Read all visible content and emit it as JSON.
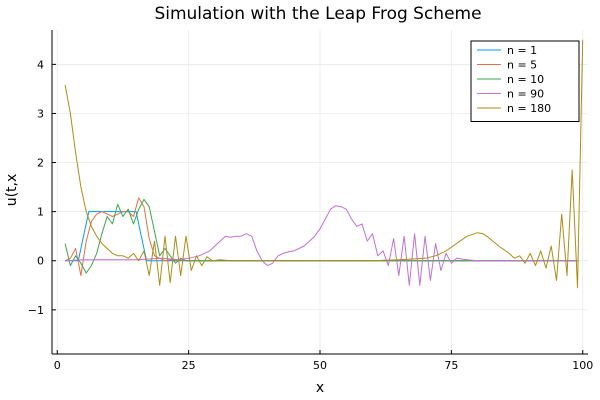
{
  "chart_data": {
    "type": "line",
    "title": "Simulation with the Leap Frog Scheme",
    "xlabel": "x",
    "ylabel": "u(t,x",
    "xlim": [
      -1,
      101
    ],
    "ylim": [
      -1.9,
      4.7
    ],
    "xticks": [
      0,
      25,
      50,
      75,
      100
    ],
    "yticks": [
      -1,
      0,
      1,
      2,
      3,
      4
    ],
    "grid": true,
    "legend_position": "top-right",
    "series": [
      {
        "name": "n = 1",
        "color": "#009AFA",
        "x": [
          1.5,
          3,
          4,
          5,
          6,
          7,
          8,
          9,
          10,
          11,
          12,
          13,
          14,
          15,
          16,
          17,
          18,
          20,
          25,
          30,
          40,
          50,
          60,
          70,
          80,
          90,
          95,
          99
        ],
        "y": [
          0,
          0,
          0,
          0.5,
          1,
          1,
          1,
          1,
          1,
          1,
          1,
          1,
          1,
          1,
          0.5,
          0,
          0,
          0,
          0,
          0,
          0,
          0,
          0,
          0,
          0,
          0,
          0,
          0
        ]
      },
      {
        "name": "n = 5",
        "color": "#E26F46",
        "x": [
          1.5,
          2.5,
          3.5,
          4.5,
          5.5,
          6.5,
          7.5,
          8.5,
          9.5,
          10.5,
          11.5,
          12.5,
          13.5,
          14.5,
          15.5,
          16.5,
          17.5,
          18.5,
          19.5,
          20.5,
          21.5,
          25,
          30,
          40,
          50,
          60,
          70,
          80,
          90,
          95,
          99
        ],
        "y": [
          0,
          0.05,
          0.25,
          -0.3,
          0.4,
          0.8,
          0.95,
          1.0,
          0.95,
          0.9,
          0.95,
          1.0,
          1.0,
          0.9,
          1.28,
          1.1,
          0.45,
          0.1,
          0.05,
          0,
          0.02,
          0,
          0,
          0,
          0,
          0,
          0,
          0,
          0,
          0,
          0
        ]
      },
      {
        "name": "n = 10",
        "color": "#3EA44E",
        "x": [
          1.5,
          2.5,
          3.5,
          4.5,
          5.5,
          6.5,
          7.5,
          8.5,
          9.5,
          10.5,
          11.5,
          12.5,
          13.5,
          14.5,
          15.5,
          16.5,
          17.5,
          18.5,
          19.5,
          20.5,
          21.5,
          22.5,
          23.5,
          24.5,
          25.5,
          30,
          40,
          50,
          60,
          70,
          80,
          90,
          95,
          99
        ],
        "y": [
          0.35,
          -0.1,
          0.1,
          -0.05,
          -0.25,
          -0.1,
          0.15,
          0.55,
          0.9,
          0.75,
          1.15,
          0.9,
          1.05,
          0.75,
          1.05,
          1.25,
          1.1,
          0.6,
          0.1,
          0.25,
          0.1,
          -0.05,
          0.05,
          0,
          0,
          0,
          0,
          0,
          0,
          0,
          0,
          0,
          0,
          0
        ]
      },
      {
        "name": "n = 90",
        "color": "#C271D2",
        "x": [
          1.5,
          5,
          10,
          15,
          20,
          23,
          25,
          27,
          29,
          31,
          32,
          33,
          34,
          35,
          36,
          37,
          38,
          39,
          40,
          41,
          42,
          43,
          44,
          45,
          46,
          47,
          48,
          49,
          50,
          51,
          52,
          53,
          54,
          55,
          56,
          57,
          58,
          59,
          60,
          61,
          62,
          63,
          64,
          65,
          66,
          67,
          68,
          69,
          70,
          71,
          72,
          73,
          74,
          75,
          76,
          78,
          80,
          85,
          90,
          95,
          99
        ],
        "y": [
          0,
          0.02,
          0.02,
          0.02,
          0.05,
          0.02,
          0.05,
          0.1,
          0.2,
          0.4,
          0.5,
          0.48,
          0.5,
          0.5,
          0.55,
          0.5,
          0.2,
          0.0,
          -0.1,
          -0.05,
          0.1,
          0.15,
          0.18,
          0.2,
          0.25,
          0.3,
          0.4,
          0.5,
          0.65,
          0.85,
          1.05,
          1.12,
          1.1,
          1.05,
          0.85,
          0.7,
          0.75,
          0.4,
          0.55,
          0.1,
          0.2,
          -0.1,
          0.45,
          -0.3,
          0.5,
          -0.5,
          0.55,
          -0.5,
          0.5,
          -0.4,
          0.35,
          -0.2,
          0.15,
          -0.05,
          0.05,
          0.02,
          0,
          0,
          0,
          0,
          0
        ]
      },
      {
        "name": "n = 180",
        "color": "#AC8D18",
        "x": [
          1.5,
          2.5,
          3.5,
          4.5,
          5.5,
          6.5,
          7.5,
          8.5,
          9.5,
          10.5,
          11.5,
          12.5,
          13.5,
          14.5,
          15.5,
          16.5,
          17.5,
          18.5,
          19.5,
          20.5,
          21.5,
          22.5,
          23.5,
          24.5,
          25.5,
          26.5,
          27.5,
          28.5,
          29.5,
          31,
          33,
          35,
          40,
          45,
          50,
          55,
          60,
          65,
          70,
          72,
          74,
          76,
          78,
          80,
          81,
          82,
          84,
          86,
          87,
          88,
          89,
          90,
          91,
          92,
          93,
          94,
          95,
          96,
          97,
          98,
          99,
          100
        ],
        "y": [
          3.58,
          3.0,
          2.2,
          1.5,
          1.0,
          0.7,
          0.5,
          0.35,
          0.25,
          0.15,
          0.1,
          0.1,
          0.05,
          0.15,
          0.0,
          0.2,
          -0.3,
          0.4,
          -0.5,
          0.5,
          -0.45,
          0.5,
          -0.3,
          0.5,
          -0.2,
          0.1,
          -0.1,
          0.08,
          0.0,
          0.02,
          0,
          0,
          0,
          0,
          0,
          0,
          0,
          0.02,
          0.05,
          0.1,
          0.2,
          0.35,
          0.5,
          0.57,
          0.55,
          0.48,
          0.3,
          0.15,
          0.05,
          0.1,
          -0.05,
          0.15,
          -0.1,
          0.2,
          -0.15,
          0.3,
          -0.4,
          0.95,
          -0.3,
          1.85,
          -0.55,
          4.5
        ]
      }
    ]
  }
}
